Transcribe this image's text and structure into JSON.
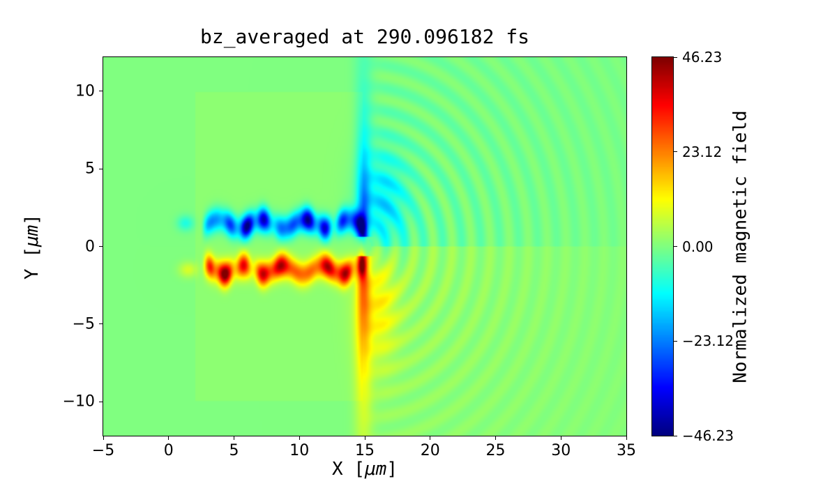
{
  "background": "#ffffff",
  "text_color": "#000000",
  "chart_data": {
    "type": "heatmap",
    "title": "bz_averaged at 290.096182 fs",
    "xlabel": {
      "pre": "X [",
      "unit": "μm",
      "post": "]"
    },
    "ylabel": {
      "pre": "Y [",
      "unit": "μm",
      "post": "]"
    },
    "x_range": [
      -5,
      35
    ],
    "y_range": [
      -12.2,
      12.2
    ],
    "x_ticks": [
      {
        "value": -5,
        "label": "−5"
      },
      {
        "value": 0,
        "label": "0"
      },
      {
        "value": 5,
        "label": "5"
      },
      {
        "value": 10,
        "label": "10"
      },
      {
        "value": 15,
        "label": "15"
      },
      {
        "value": 20,
        "label": "20"
      },
      {
        "value": 25,
        "label": "25"
      },
      {
        "value": 30,
        "label": "30"
      },
      {
        "value": 35,
        "label": "35"
      }
    ],
    "y_ticks": [
      {
        "value": 10,
        "label": "10"
      },
      {
        "value": 5,
        "label": "5"
      },
      {
        "value": 0,
        "label": "0"
      },
      {
        "value": -5,
        "label": "−5"
      },
      {
        "value": -10,
        "label": "−10"
      }
    ],
    "colorbar": {
      "label": "Normalized magnetic field",
      "colormap": "jet",
      "vmin": -46.23,
      "vmax": 46.23,
      "ticks": [
        {
          "value": 46.23,
          "label": "46.23"
        },
        {
          "value": 23.12,
          "label": "23.12"
        },
        {
          "value": 0,
          "label": "0.00"
        },
        {
          "value": -23.12,
          "label": "−23.12"
        },
        {
          "value": -46.23,
          "label": "−46.23"
        }
      ]
    },
    "field_model": {
      "background": 0.0,
      "slab": {
        "x0": 2.0,
        "x1": 14.8,
        "half_height": 10.0,
        "tint": 1.2
      },
      "streaks": {
        "x_start": 2.4,
        "x_end": 15.0,
        "amplitude": 40,
        "negative_center_y": 1.45,
        "positive_center_y": -1.5,
        "sigma_y": 0.52,
        "wobble_amp": 0.28,
        "wobble_freq": 1.9,
        "lump_freq_a": 2.8,
        "lump_freq_b": 1.35
      },
      "rear_filament": {
        "x": 14.9,
        "sigma_x": 0.3,
        "amplitude": 27,
        "start_y": 0.6,
        "decay_up": 6.0,
        "decay_down": 7.5
      },
      "lobes": [
        {
          "x": 16.3,
          "y": 2.6,
          "sx": 1.3,
          "sy": 2.4,
          "amp": -13
        },
        {
          "x": 15.9,
          "y": -3.6,
          "sx": 1.1,
          "sy": 2.8,
          "amp": 11
        },
        {
          "x": 1.3,
          "y": 1.5,
          "sx": 0.45,
          "sy": 0.35,
          "amp": -9
        },
        {
          "x": 1.5,
          "y": -1.5,
          "sx": 0.5,
          "sy": 0.35,
          "amp": 8
        }
      ],
      "ripples": {
        "center_x": 15.0,
        "center_y": 0.0,
        "wavelength": 1.45,
        "amplitude": 5.5,
        "decay": 11.0,
        "top_sign": -1.0,
        "bottom_sign": -0.7,
        "phase": 0.8
      },
      "haze": {
        "top_amp": -2.5,
        "bottom_amp": 3.5,
        "decay": 12.0
      }
    }
  }
}
